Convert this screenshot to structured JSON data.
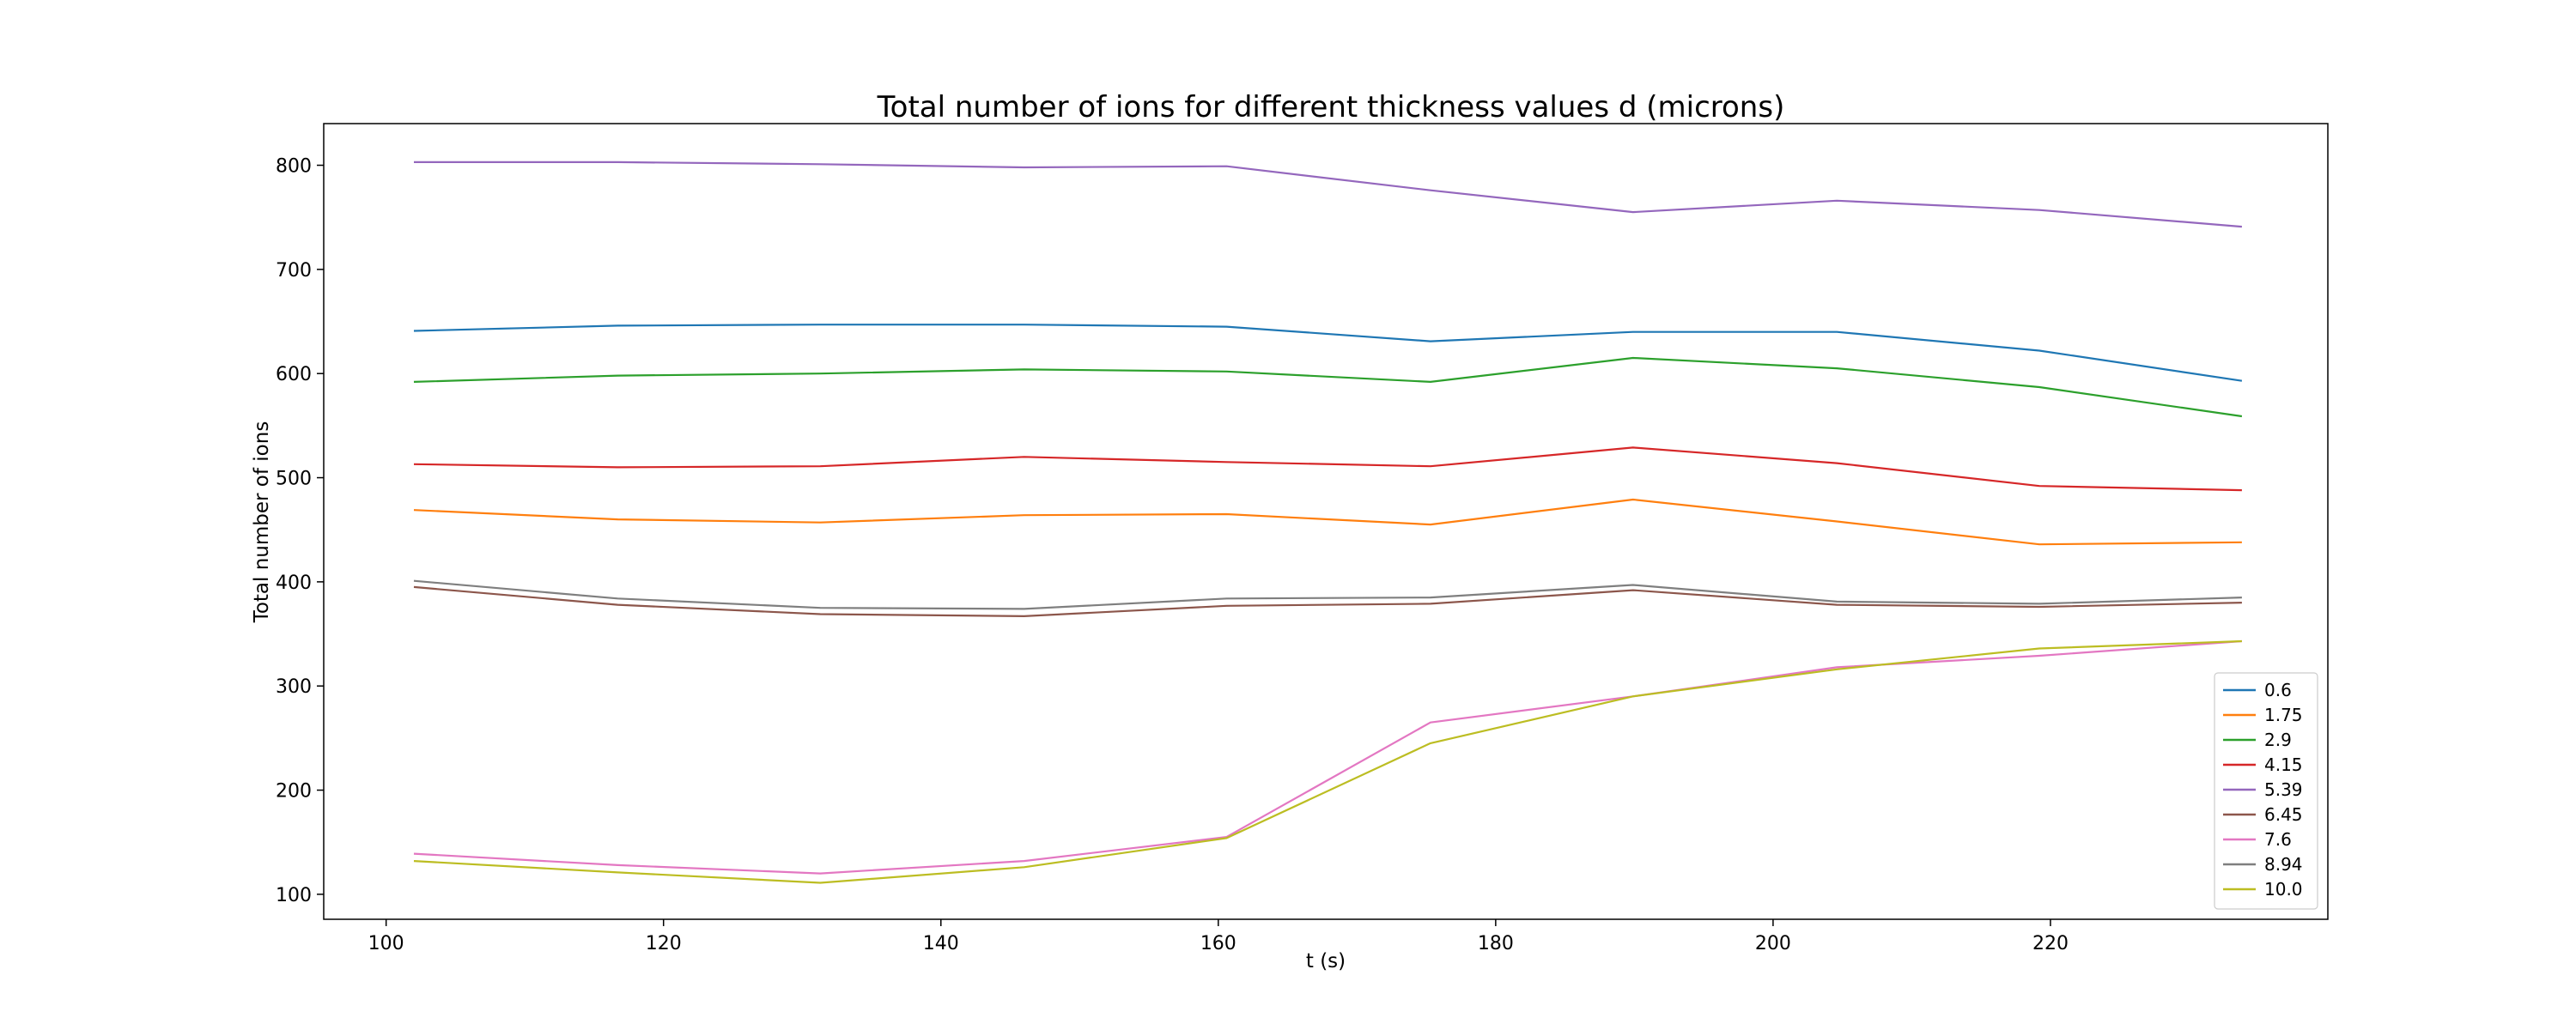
{
  "chart_data": {
    "type": "line",
    "title": "Total number of ions for different thickness values d (microns)",
    "xlabel": "t (s)",
    "ylabel": "Total number of ions",
    "xlim": [
      95.5,
      240
    ],
    "ylim": [
      76,
      840
    ],
    "xticks": [
      100,
      120,
      140,
      160,
      180,
      200,
      220
    ],
    "yticks": [
      100,
      200,
      300,
      400,
      500,
      600,
      700,
      800
    ],
    "grid": false,
    "legend_position": "lower-right",
    "x": [
      102,
      116.7,
      131.3,
      146,
      160.6,
      175.3,
      189.9,
      204.6,
      219.2,
      233.8
    ],
    "series": [
      {
        "name": "0.6",
        "color": "#1f77b4",
        "values": [
          641,
          646,
          647,
          647,
          645,
          631,
          640,
          640,
          622,
          593
        ]
      },
      {
        "name": "1.75",
        "color": "#ff7f0e",
        "values": [
          469,
          460,
          457,
          464,
          465,
          455,
          479,
          458,
          436,
          438
        ]
      },
      {
        "name": "2.9",
        "color": "#2ca02c",
        "values": [
          592,
          598,
          600,
          604,
          602,
          592,
          615,
          605,
          587,
          559
        ]
      },
      {
        "name": "4.15",
        "color": "#d62728",
        "values": [
          513,
          510,
          511,
          520,
          515,
          511,
          529,
          514,
          492,
          488
        ]
      },
      {
        "name": "5.39",
        "color": "#9467bd",
        "values": [
          803,
          803,
          801,
          798,
          799,
          776,
          755,
          766,
          757,
          741
        ]
      },
      {
        "name": "6.45",
        "color": "#8c564b",
        "values": [
          395,
          378,
          369,
          367,
          377,
          379,
          392,
          378,
          376,
          380
        ]
      },
      {
        "name": "7.6",
        "color": "#e377c2",
        "values": [
          139,
          128,
          120,
          132,
          155,
          265,
          290,
          318,
          329,
          343
        ]
      },
      {
        "name": "8.94",
        "color": "#7f7f7f",
        "values": [
          401,
          384,
          375,
          374,
          384,
          385,
          397,
          381,
          379,
          385
        ]
      },
      {
        "name": "10.0",
        "color": "#bcbd22",
        "values": [
          132,
          121,
          111,
          126,
          154,
          245,
          290,
          316,
          336,
          343
        ]
      }
    ]
  }
}
